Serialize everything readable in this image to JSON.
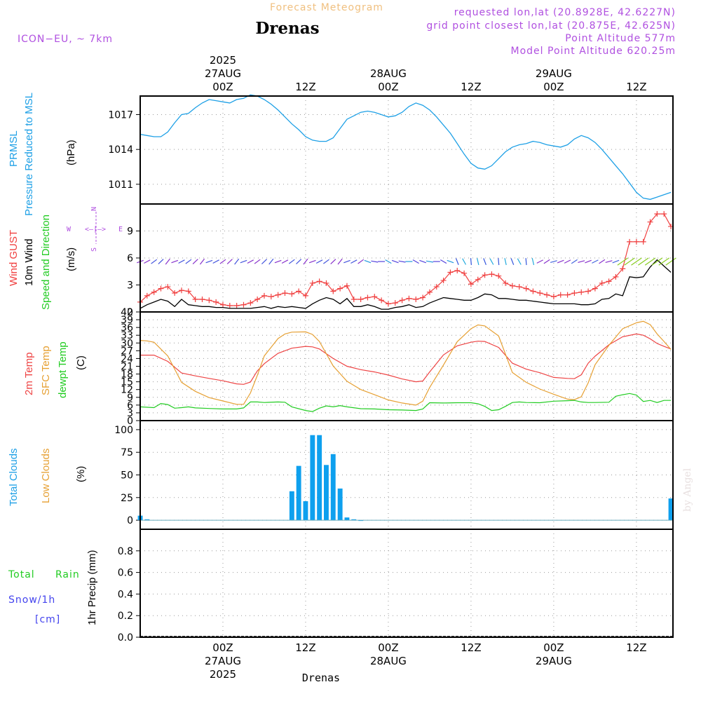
{
  "header": {
    "title": "Forecast Meteogram",
    "location": "Drenas",
    "model": "ICON−EU, ~ 7km",
    "requested": "requested lon,lat (20.8928E, 42.6227N)",
    "grid_point": "grid point closest lon,lat (20.875E, 42.625N)",
    "point_altitude": "Point Altitude 577m",
    "model_altitude": "Model Point Altitude 620.25m",
    "footer_location": "Drenas",
    "watermark": "by Angel"
  },
  "time_axis": {
    "top_labels": [
      {
        "hour": 12,
        "lines": [
          "2025",
          "27AUG",
          "00Z"
        ]
      },
      {
        "hour": 24,
        "lines": [
          "12Z"
        ]
      },
      {
        "hour": 36,
        "lines": [
          "28AUG",
          "00Z"
        ]
      },
      {
        "hour": 48,
        "lines": [
          "12Z"
        ]
      },
      {
        "hour": 60,
        "lines": [
          "29AUG",
          "00Z"
        ]
      },
      {
        "hour": 72,
        "lines": [
          "12Z"
        ]
      }
    ],
    "bottom_labels": [
      {
        "hour": 12,
        "lines": [
          "00Z",
          "27AUG",
          "2025"
        ]
      },
      {
        "hour": 24,
        "lines": [
          "12Z"
        ]
      },
      {
        "hour": 36,
        "lines": [
          "00Z",
          "28AUG"
        ]
      },
      {
        "hour": 48,
        "lines": [
          "12Z"
        ]
      },
      {
        "hour": 60,
        "lines": [
          "00Z",
          "29AUG"
        ]
      },
      {
        "hour": 72,
        "lines": [
          "12Z"
        ]
      }
    ],
    "range_hours": [
      0,
      77.3
    ]
  },
  "colors": {
    "pressure": "#1ea0e6",
    "gust": "#f04040",
    "wind": "#000000",
    "temp2m": "#ee4444",
    "sfc_temp": "#e6a033",
    "dewpt": "#22cc22",
    "clouds": "#0ea0ee",
    "low_clouds": "#e6a033",
    "rain": "#22cc22",
    "snow": "#4444ee",
    "header": "#f0c080",
    "info": "#b050e0",
    "compass": "#b050e0"
  },
  "panels": {
    "pressure": {
      "labels": [
        "PRMSL",
        "Pressure Reduced to MSL"
      ],
      "unit": "(hPa)"
    },
    "wind": {
      "labels": [
        "Wind GUST",
        "10m Wind",
        "Speed and Direction"
      ],
      "unit": "(m/s)",
      "compass": {
        "n": "N",
        "s": "S",
        "w": "W",
        "e": "E",
        "arrows": "<—|—>"
      }
    },
    "temperature": {
      "labels": [
        "2m Temp",
        "SFC Temp",
        "dewpt Temp"
      ],
      "unit": "(C)"
    },
    "clouds": {
      "labels": [
        "Total Clouds",
        "Low Clouds"
      ],
      "unit": "(%)"
    },
    "precip": {
      "labels": [
        "Total",
        "Rain",
        "Snow/1h",
        "[cm]"
      ],
      "unit": "1hr Precip (mm)"
    }
  },
  "chart_data": [
    {
      "type": "line",
      "title": "PRMSL Pressure Reduced to MSL",
      "ylabel": "(hPa)",
      "ylim": [
        1009.3,
        1018.6
      ],
      "yticks": [
        1011,
        1014,
        1017
      ],
      "series": [
        {
          "name": "PRMSL",
          "x": [
            0,
            1,
            2,
            3,
            4,
            5,
            6,
            7,
            8,
            9,
            10,
            11,
            12,
            13,
            14,
            15,
            16,
            17,
            18,
            19,
            20,
            21,
            22,
            23,
            24,
            25,
            26,
            27,
            28,
            29,
            30,
            31,
            32,
            33,
            34,
            35,
            36,
            37,
            38,
            39,
            40,
            41,
            42,
            43,
            44,
            45,
            46,
            47,
            48,
            49,
            50,
            51,
            52,
            53,
            54,
            55,
            56,
            57,
            58,
            59,
            60,
            61,
            62,
            63,
            64,
            65,
            66,
            67,
            68,
            69,
            70,
            71,
            72,
            73,
            74,
            75,
            76,
            77
          ],
          "values": [
            1015.3,
            1015.2,
            1015.1,
            1015.1,
            1015.5,
            1016.3,
            1017.0,
            1017.1,
            1017.6,
            1018.0,
            1018.3,
            1018.2,
            1018.1,
            1018.0,
            1018.3,
            1018.4,
            1018.7,
            1018.6,
            1018.3,
            1017.9,
            1017.4,
            1016.8,
            1016.2,
            1015.7,
            1015.1,
            1014.8,
            1014.7,
            1014.7,
            1015.0,
            1015.8,
            1016.6,
            1016.9,
            1017.2,
            1017.3,
            1017.2,
            1017.0,
            1016.8,
            1016.9,
            1017.2,
            1017.7,
            1018.0,
            1017.8,
            1017.4,
            1016.8,
            1016.1,
            1015.4,
            1014.5,
            1013.6,
            1012.8,
            1012.4,
            1012.3,
            1012.6,
            1013.2,
            1013.8,
            1014.2,
            1014.4,
            1014.5,
            1014.7,
            1014.6,
            1014.4,
            1014.3,
            1014.2,
            1014.4,
            1014.9,
            1015.2,
            1015.0,
            1014.6,
            1014.0,
            1013.3,
            1012.6,
            1011.9,
            1011.1,
            1010.3,
            1009.8,
            1009.7,
            1009.9,
            1010.1,
            1010.3
          ]
        }
      ]
    },
    {
      "type": "line",
      "title": "Wind GUST / 10m Wind Speed and Direction",
      "ylabel": "(m/s)",
      "ylim": [
        0,
        12
      ],
      "yticks": [
        0,
        3,
        6,
        9
      ],
      "series": [
        {
          "name": "Wind GUST",
          "x": [
            0,
            1,
            2,
            3,
            4,
            5,
            6,
            7,
            8,
            9,
            10,
            11,
            12,
            13,
            14,
            15,
            16,
            17,
            18,
            19,
            20,
            21,
            22,
            23,
            24,
            25,
            26,
            27,
            28,
            29,
            30,
            31,
            32,
            33,
            34,
            35,
            36,
            37,
            38,
            39,
            40,
            41,
            42,
            43,
            44,
            45,
            46,
            47,
            48,
            49,
            50,
            51,
            52,
            53,
            54,
            55,
            56,
            57,
            58,
            59,
            60,
            61,
            62,
            63,
            64,
            65,
            66,
            67,
            68,
            69,
            70,
            71,
            72,
            73,
            74,
            75,
            76,
            77
          ],
          "values": [
            1.1,
            1.8,
            2.2,
            2.6,
            2.8,
            2.1,
            2.4,
            2.3,
            1.4,
            1.4,
            1.3,
            1.1,
            0.8,
            0.7,
            0.7,
            0.8,
            1.0,
            1.4,
            1.8,
            1.7,
            1.9,
            2.1,
            2.0,
            2.3,
            1.8,
            3.2,
            3.4,
            3.2,
            2.3,
            2.6,
            2.9,
            1.4,
            1.4,
            1.6,
            1.7,
            1.3,
            0.9,
            1.0,
            1.3,
            1.5,
            1.4,
            1.6,
            2.2,
            2.8,
            3.5,
            4.4,
            4.6,
            4.3,
            3.1,
            3.6,
            4.1,
            4.2,
            4.0,
            3.2,
            2.9,
            2.8,
            2.6,
            2.3,
            2.1,
            1.9,
            1.7,
            1.9,
            1.9,
            2.1,
            2.2,
            2.3,
            2.6,
            3.2,
            3.4,
            3.9,
            4.8,
            7.8,
            7.8,
            7.8,
            10.0,
            10.9,
            10.9,
            9.5
          ]
        },
        {
          "name": "10m Wind",
          "x": [
            0,
            1,
            2,
            3,
            4,
            5,
            6,
            7,
            8,
            9,
            10,
            11,
            12,
            13,
            14,
            15,
            16,
            17,
            18,
            19,
            20,
            21,
            22,
            23,
            24,
            25,
            26,
            27,
            28,
            29,
            30,
            31,
            32,
            33,
            34,
            35,
            36,
            37,
            38,
            39,
            40,
            41,
            42,
            43,
            44,
            45,
            46,
            47,
            48,
            49,
            50,
            51,
            52,
            53,
            54,
            55,
            56,
            57,
            58,
            59,
            60,
            61,
            62,
            63,
            64,
            65,
            66,
            67,
            68,
            69,
            70,
            71,
            72,
            73,
            74,
            75,
            76,
            77
          ],
          "values": [
            0.4,
            0.8,
            1.1,
            1.4,
            1.2,
            0.6,
            1.4,
            0.8,
            0.7,
            0.6,
            0.6,
            0.5,
            0.5,
            0.4,
            0.4,
            0.4,
            0.4,
            0.5,
            0.6,
            0.4,
            0.6,
            0.5,
            0.6,
            0.5,
            0.4,
            0.9,
            1.3,
            1.6,
            1.4,
            0.9,
            1.5,
            0.6,
            0.6,
            0.8,
            0.6,
            0.3,
            0.3,
            0.5,
            0.6,
            0.8,
            0.5,
            0.6,
            1.0,
            1.3,
            1.6,
            1.5,
            1.4,
            1.3,
            1.3,
            1.6,
            2.0,
            1.9,
            1.5,
            1.5,
            1.4,
            1.3,
            1.3,
            1.2,
            1.1,
            1.0,
            0.9,
            0.9,
            0.9,
            0.9,
            0.8,
            0.8,
            0.9,
            1.4,
            1.5,
            2.0,
            1.8,
            3.9,
            3.8,
            3.9,
            5.0,
            5.8,
            5.1,
            4.4
          ]
        }
      ]
    },
    {
      "type": "line",
      "title": "2m Temp / SFC Temp / dewpt Temp",
      "ylabel": "(C)",
      "ylim": [
        0,
        42
      ],
      "yticks": [
        0,
        3,
        6,
        9,
        12,
        15,
        18,
        21,
        24,
        27,
        30,
        33,
        36,
        39,
        42
      ],
      "series": [
        {
          "name": "2m Temp",
          "x": [
            0,
            2,
            4,
            6,
            8,
            10,
            12,
            14,
            15,
            16,
            17,
            18,
            20,
            22,
            24,
            25,
            26,
            28,
            30,
            32,
            34,
            36,
            38,
            40,
            41,
            42,
            44,
            46,
            48,
            49,
            50,
            52,
            54,
            56,
            58,
            60,
            62,
            63,
            64,
            65,
            66,
            68,
            70,
            72,
            73,
            74,
            75,
            76,
            77
          ],
          "values": [
            25.3,
            25.3,
            22.9,
            18.4,
            17.3,
            16.3,
            15.4,
            14.2,
            14.0,
            14.9,
            19.2,
            22.0,
            26.0,
            28.0,
            28.7,
            28.5,
            27.7,
            24.0,
            21.0,
            19.7,
            18.8,
            17.6,
            16.1,
            15.0,
            15.3,
            18.8,
            25.4,
            28.9,
            30.3,
            30.7,
            30.6,
            28.3,
            22.2,
            19.9,
            18.5,
            16.7,
            16.3,
            16.2,
            17.7,
            22.2,
            24.9,
            29.3,
            32.4,
            33.5,
            33.0,
            31.6,
            29.8,
            28.7,
            27.7
          ]
        },
        {
          "name": "SFC Temp",
          "x": [
            0,
            1,
            2,
            4,
            6,
            8,
            10,
            12,
            14,
            15,
            16,
            17,
            18,
            20,
            21,
            22,
            24,
            25,
            26,
            28,
            30,
            32,
            34,
            36,
            38,
            40,
            41,
            42,
            44,
            46,
            48,
            49,
            50,
            52,
            54,
            56,
            58,
            60,
            62,
            63,
            64,
            65,
            66,
            68,
            70,
            72,
            73,
            74,
            75,
            76,
            77
          ],
          "values": [
            31.0,
            30.8,
            30.3,
            25.0,
            14.8,
            11.3,
            8.9,
            7.6,
            6.3,
            6.3,
            10.7,
            17.5,
            25.0,
            31.7,
            33.5,
            34.2,
            34.3,
            33.3,
            30.6,
            21.1,
            15.2,
            12.0,
            10.0,
            8.0,
            6.8,
            6.0,
            7.5,
            12.8,
            21.5,
            30.5,
            35.5,
            37.0,
            36.6,
            32.7,
            18.6,
            14.8,
            12.2,
            10.2,
            8.3,
            8.1,
            9.2,
            14.6,
            21.6,
            29.1,
            35.5,
            37.8,
            38.4,
            37.1,
            33.5,
            30.6,
            27.5
          ]
        },
        {
          "name": "dewpt Temp",
          "x": [
            0,
            2,
            3,
            4,
            5,
            6,
            7,
            8,
            10,
            12,
            14,
            15,
            16,
            17,
            18,
            20,
            21,
            22,
            24,
            25,
            26,
            27,
            28,
            29,
            30,
            32,
            34,
            36,
            38,
            40,
            41,
            42,
            44,
            46,
            48,
            49,
            50,
            51,
            52,
            53,
            54,
            55,
            56,
            58,
            60,
            62,
            63,
            64,
            65,
            66,
            68,
            69,
            70,
            71,
            72,
            73,
            74,
            75,
            76,
            77
          ],
          "values": [
            5.3,
            5.0,
            6.6,
            6.2,
            4.8,
            5.0,
            5.3,
            4.9,
            4.7,
            4.5,
            4.5,
            4.9,
            7.2,
            7.2,
            7.0,
            7.2,
            7.1,
            5.3,
            3.9,
            3.5,
            4.8,
            5.7,
            5.3,
            5.8,
            5.3,
            4.6,
            4.5,
            4.2,
            4.1,
            3.9,
            4.5,
            6.9,
            6.8,
            6.9,
            6.9,
            6.5,
            5.5,
            3.9,
            4.2,
            5.5,
            7.0,
            7.2,
            7.0,
            6.9,
            7.5,
            7.7,
            7.8,
            7.2,
            7.0,
            7.0,
            7.1,
            9.4,
            10.0,
            10.5,
            9.9,
            7.4,
            7.8,
            7.0,
            7.8,
            7.8
          ]
        }
      ]
    },
    {
      "type": "bar",
      "title": "Total Clouds / Low Clouds",
      "ylabel": "(%)",
      "ylim": [
        -10,
        110
      ],
      "yticks": [
        0,
        25,
        50,
        75,
        100
      ],
      "series": [
        {
          "name": "Total Clouds",
          "x": [
            0,
            1,
            22,
            23,
            24,
            25,
            26,
            27,
            28,
            29,
            30,
            31,
            32,
            77
          ],
          "values": [
            5,
            1,
            32,
            60,
            21,
            94,
            94,
            61,
            73,
            35,
            3,
            1,
            0,
            24
          ]
        },
        {
          "name": "Low Clouds",
          "x": [
            0,
            77
          ],
          "values": [
            0,
            0
          ]
        }
      ]
    },
    {
      "type": "line",
      "title": "1hr Precip (mm)",
      "ylabel": "1hr Precip (mm)",
      "ylim": [
        0,
        1.0
      ],
      "yticks": [
        0,
        0.2,
        0.4,
        0.6,
        0.8
      ],
      "series": [
        {
          "name": "Total Rain",
          "x": [
            0,
            77
          ],
          "values": [
            0,
            0
          ]
        }
      ]
    }
  ]
}
